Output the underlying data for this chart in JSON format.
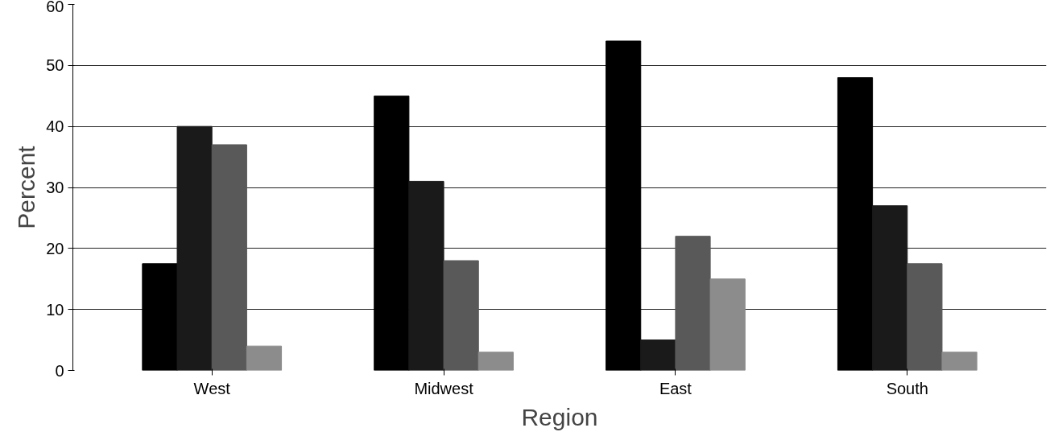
{
  "chart_data": {
    "type": "bar",
    "xlabel": "Region",
    "ylabel": "Percent",
    "categories": [
      "West",
      "Midwest",
      "East",
      "South"
    ],
    "series": [
      {
        "color": "#000000",
        "values": [
          17.5,
          45,
          54,
          48
        ]
      },
      {
        "color": "#1a1a1a",
        "values": [
          40,
          31,
          5,
          27
        ]
      },
      {
        "color": "#595959",
        "values": [
          37,
          18,
          22,
          17.5
        ]
      },
      {
        "color": "#8c8c8c",
        "values": [
          4,
          3,
          15,
          3
        ]
      }
    ],
    "ylim": [
      0,
      60
    ],
    "yticks": [
      0,
      10,
      20,
      30,
      40,
      50,
      60
    ],
    "grid": "y"
  }
}
